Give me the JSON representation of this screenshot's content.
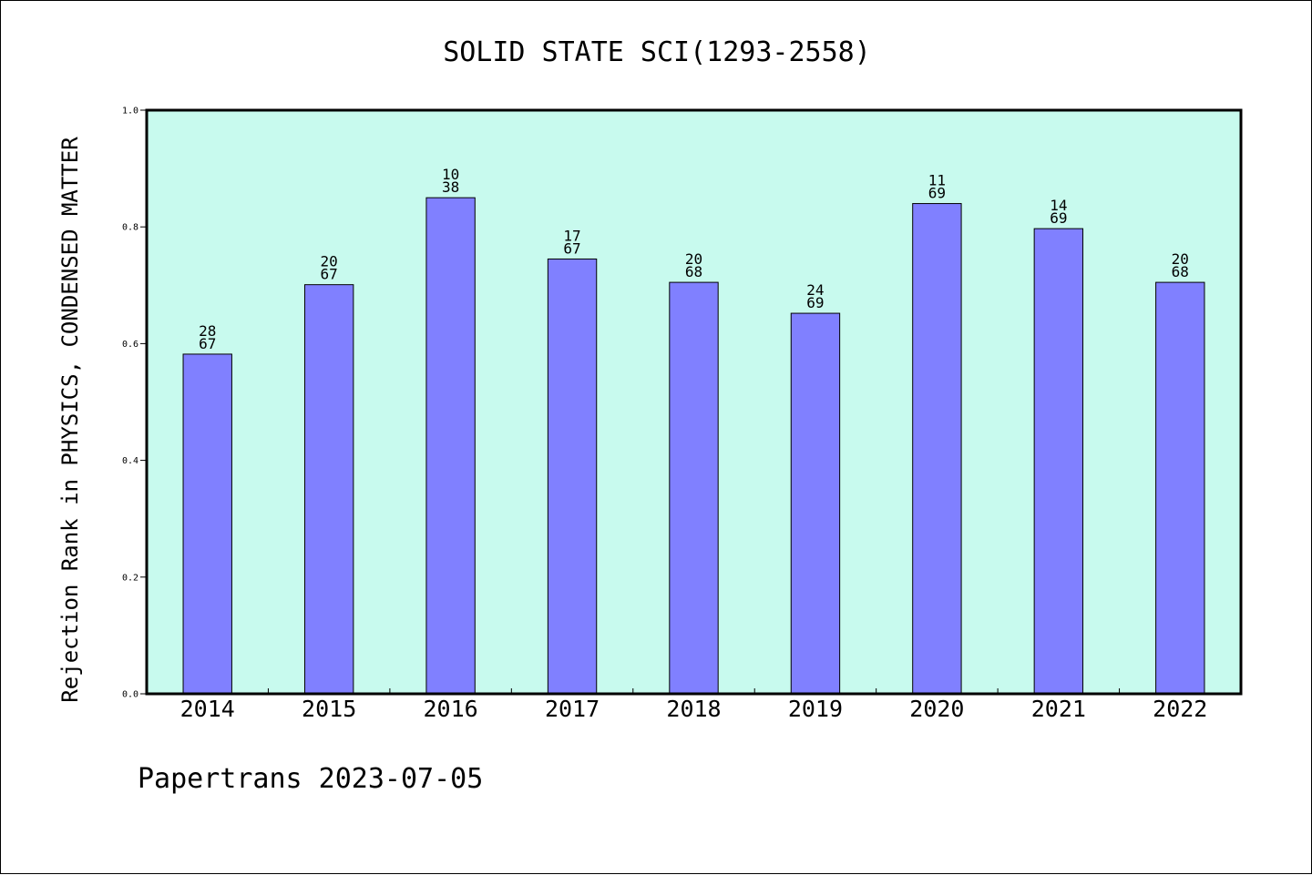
{
  "chart_data": {
    "type": "bar",
    "title": "SOLID STATE SCI(1293-2558)",
    "xlabel": "",
    "ylabel": "Rejection Rank in PHYSICS, CONDENSED MATTER",
    "ylim": [
      0,
      1
    ],
    "yticks": [
      "0.0",
      "0.2",
      "0.4",
      "0.6",
      "0.8",
      "1.0"
    ],
    "categories": [
      "2014",
      "2015",
      "2016",
      "2017",
      "2018",
      "2019",
      "2020",
      "2021",
      "2022"
    ],
    "values": [
      0.582,
      0.701,
      0.85,
      0.745,
      0.705,
      0.652,
      0.84,
      0.797,
      0.705
    ],
    "labels_top": [
      "28",
      "20",
      "10",
      "17",
      "20",
      "24",
      "11",
      "14",
      "20"
    ],
    "labels_bottom": [
      "67",
      "67",
      "38",
      "67",
      "68",
      "69",
      "69",
      "69",
      "68"
    ],
    "grid": false,
    "legend": "none"
  },
  "colors": {
    "plot_background": "#c8faee",
    "bar_fill": "#8080ff",
    "bar_stroke": "#000000"
  },
  "footer": {
    "text": "Papertrans 2023-07-05"
  }
}
